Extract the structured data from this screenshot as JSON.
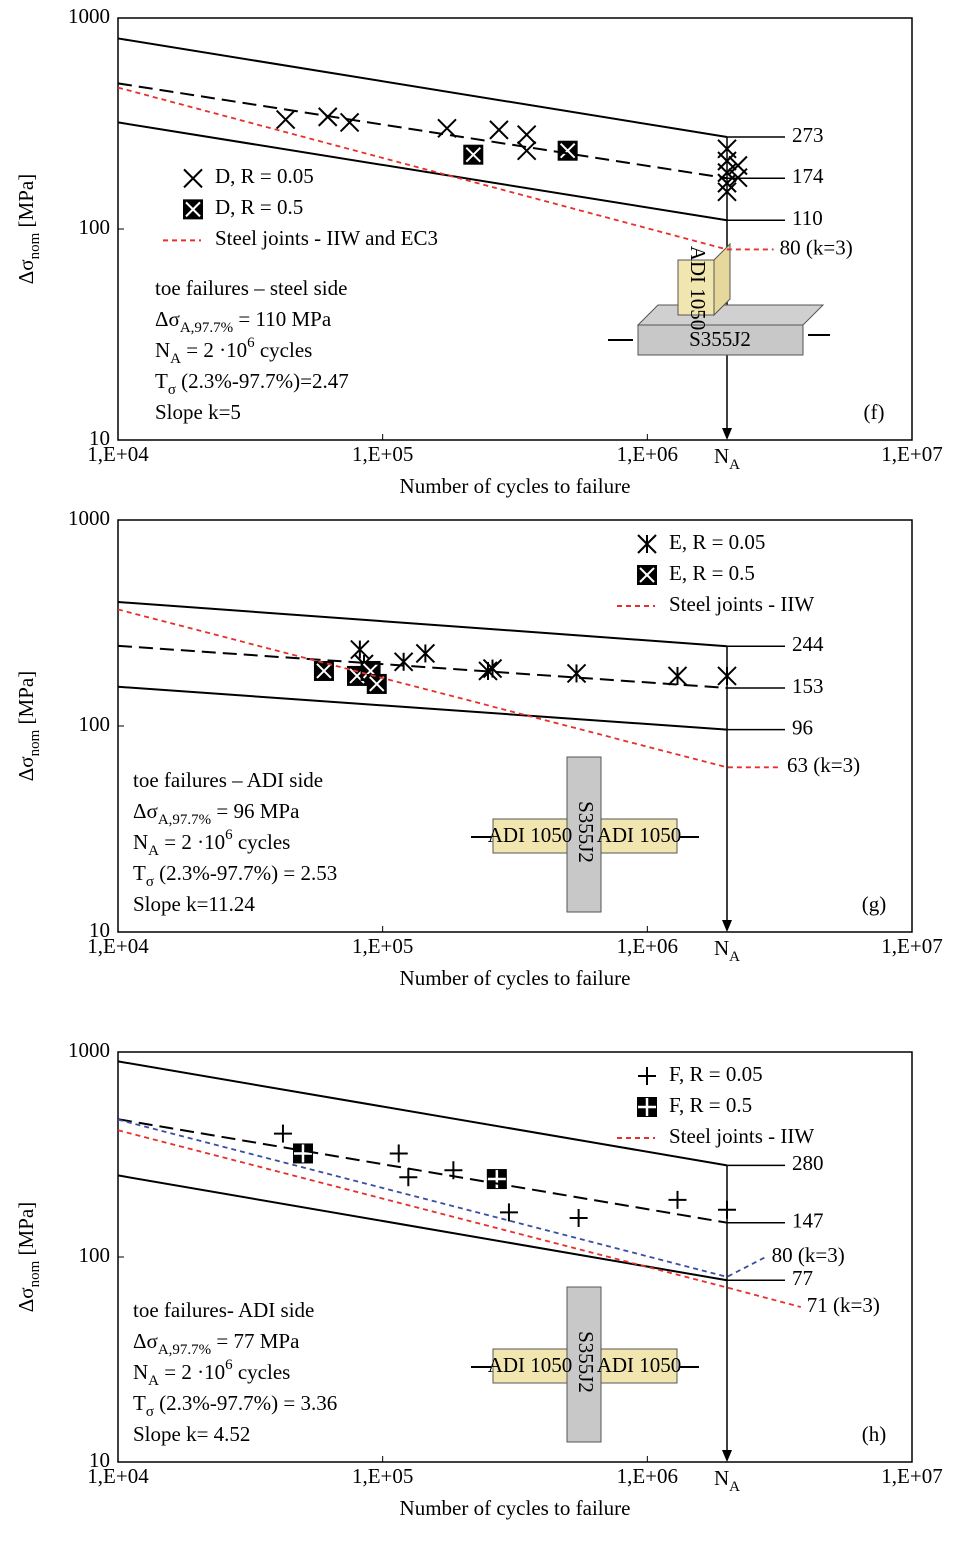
{
  "chart_data": [
    {
      "type": "scatter",
      "log_x": true,
      "log_y": true,
      "legend": "center-left",
      "panel_label": "(f)",
      "xlabel": "Number of cycles to failure",
      "ylabel": [
        "Δσ",
        {
          "sub": "nom"
        },
        " [MPa]"
      ],
      "xlim": [
        10000,
        10000000
      ],
      "ylim": [
        10,
        1000
      ],
      "xticks": [
        {
          "value": 10000,
          "label": "1,E+04"
        },
        {
          "value": 100000,
          "label": "1,E+05"
        },
        {
          "value": 1000000,
          "label": "1,E+06"
        },
        {
          "value": 10000000,
          "label": "1,E+07"
        }
      ],
      "yticks": [
        10,
        100,
        1000
      ],
      "x_marker": {
        "value": 2000000,
        "label": [
          "N",
          {
            "sub": "A"
          }
        ]
      },
      "series": [
        {
          "name": "D, R = 0.05",
          "marker": "x",
          "color": "#000000",
          "x": [
            43000,
            62000,
            75000,
            175000,
            275000,
            350000,
            350000,
            2000000,
            2000000,
            2000000,
            2000000,
            2000000,
            2200000,
            2200000
          ],
          "values": [
            330,
            340,
            320,
            300,
            295,
            280,
            235,
            240,
            210,
            185,
            165,
            150,
            200,
            175
          ]
        },
        {
          "name": "D, R = 0.5",
          "marker": "xbox",
          "color": "#000000",
          "x": [
            220000,
            500000
          ],
          "values": [
            225,
            235
          ]
        },
        {
          "style": "solid",
          "color": "#000000",
          "x": [
            10000,
            2000000
          ],
          "values": [
            800,
            273
          ],
          "label": 273
        },
        {
          "style": "dashed",
          "color": "#000000",
          "x": [
            10000,
            2000000
          ],
          "values": [
            490,
            174
          ],
          "label": 174
        },
        {
          "style": "solid",
          "color": "#000000",
          "x": [
            10000,
            2000000
          ],
          "values": [
            320,
            110
          ],
          "label": 110
        },
        {
          "name": "Steel joints - IIW and EC3",
          "style": "dashed",
          "color": "#e8302a",
          "x": [
            10000,
            2000000,
            3000000
          ],
          "values": [
            468,
            80,
            80
          ],
          "label": {
            "value": 80,
            "label": "80 (k=3)"
          }
        }
      ],
      "notes": [
        [
          "toe failures – steel side"
        ],
        [
          "Δσ",
          {
            "sub": "A,97.7%"
          },
          " =  110 MPa"
        ],
        [
          "N",
          {
            "sub": "A"
          },
          " = 2 ·10",
          {
            "sup": "6"
          },
          " cycles"
        ],
        [
          "T",
          {
            "sub": "σ"
          },
          " (2.3%-97.7%)=2.47"
        ],
        [
          "Slope k=5"
        ]
      ],
      "inset_labels": [
        "ADI 1050",
        "S355J2"
      ]
    },
    {
      "type": "scatter",
      "log_x": true,
      "log_y": true,
      "legend": "upper-right",
      "panel_label": "(g)",
      "xlabel": "Number of cycles to failure",
      "ylabel": [
        "Δσ",
        {
          "sub": "nom"
        },
        " [MPa]"
      ],
      "xlim": [
        10000,
        10000000
      ],
      "ylim": [
        10,
        1000
      ],
      "xticks": [
        {
          "value": 10000,
          "label": "1,E+04"
        },
        {
          "value": 100000,
          "label": "1,E+05"
        },
        {
          "value": 1000000,
          "label": "1,E+06"
        },
        {
          "value": 10000000,
          "label": "1,E+07"
        }
      ],
      "yticks": [
        10,
        100,
        1000
      ],
      "x_marker": {
        "value": 2000000,
        "label": [
          "N",
          {
            "sub": "A"
          }
        ]
      },
      "series": [
        {
          "name": "E, R = 0.05",
          "marker": "asterisk",
          "color": "#000000",
          "x": [
            82000,
            85000,
            120000,
            145000,
            250000,
            260000,
            540000,
            1300000,
            2000000
          ],
          "values": [
            235,
            200,
            205,
            225,
            185,
            190,
            180,
            175,
            175
          ]
        },
        {
          "name": "E, R = 0.5",
          "marker": "xbox",
          "color": "#000000",
          "x": [
            60000,
            80000,
            90000,
            95000
          ],
          "values": [
            185,
            175,
            185,
            160
          ]
        },
        {
          "style": "solid",
          "color": "#000000",
          "x": [
            10000,
            2000000
          ],
          "values": [
            400,
            244
          ],
          "label": 244
        },
        {
          "style": "dashed",
          "color": "#000000",
          "x": [
            10000,
            2000000
          ],
          "values": [
            245,
            153
          ],
          "label": 153
        },
        {
          "style": "solid",
          "color": "#000000",
          "x": [
            10000,
            2000000
          ],
          "values": [
            155,
            96
          ],
          "label": 96
        },
        {
          "name": "Steel joints - IIW",
          "style": "dashed",
          "color": "#e8302a",
          "x": [
            10000,
            2000000,
            3200000
          ],
          "values": [
            368,
            63,
            63
          ],
          "label": {
            "value": 63,
            "label": "63 (k=3)"
          }
        }
      ],
      "notes": [
        [
          "toe failures – ADI side"
        ],
        [
          "Δσ",
          {
            "sub": "A,97.7%"
          },
          " =  96 MPa"
        ],
        [
          "N",
          {
            "sub": "A"
          },
          " = 2 ·10",
          {
            "sup": "6"
          },
          " cycles"
        ],
        [
          "T",
          {
            "sub": "σ"
          },
          " (2.3%-97.7%) = 2.53"
        ],
        [
          "Slope k=11.24"
        ]
      ],
      "inset_labels": [
        "ADI 1050",
        "S355J2",
        "ADI 1050"
      ]
    },
    {
      "type": "scatter",
      "log_x": true,
      "log_y": true,
      "legend": "upper-right",
      "panel_label": "(h)",
      "xlabel": "Number of cycles to failure",
      "ylabel": [
        "Δσ",
        {
          "sub": "nom"
        },
        " [MPa]"
      ],
      "xlim": [
        10000,
        10000000
      ],
      "ylim": [
        10,
        1000
      ],
      "xticks": [
        {
          "value": 10000,
          "label": "1,E+04"
        },
        {
          "value": 100000,
          "label": "1,E+05"
        },
        {
          "value": 1000000,
          "label": "1,E+06"
        },
        {
          "value": 10000000,
          "label": "1,E+07"
        }
      ],
      "yticks": [
        10,
        100,
        1000
      ],
      "x_marker": {
        "value": 2000000,
        "label": [
          "N",
          {
            "sub": "A"
          }
        ]
      },
      "series": [
        {
          "name": "F, R = 0.05",
          "marker": "plus",
          "color": "#000000",
          "x": [
            42000,
            115000,
            125000,
            185000,
            300000,
            550000,
            1300000,
            2000000
          ],
          "values": [
            400,
            320,
            245,
            265,
            165,
            155,
            190,
            170
          ]
        },
        {
          "name": "F, R = 0.5",
          "marker": "plusbox",
          "color": "#000000",
          "x": [
            50000,
            270000
          ],
          "values": [
            320,
            240
          ]
        },
        {
          "style": "solid",
          "color": "#000000",
          "x": [
            10000,
            2000000
          ],
          "values": [
            900,
            280
          ],
          "label": 280
        },
        {
          "style": "dashed",
          "color": "#000000",
          "x": [
            10000,
            2000000
          ],
          "values": [
            470,
            147
          ],
          "label": 147
        },
        {
          "style": "solid",
          "color": "#000000",
          "x": [
            10000,
            2000000
          ],
          "values": [
            250,
            77
          ],
          "label": 77
        },
        {
          "style": "dashed",
          "color": "#3a4fa0",
          "x": [
            10000,
            2000000,
            2800000
          ],
          "values": [
            468,
            80,
            100
          ],
          "label": {
            "value": 80,
            "label": "80 (k=3)"
          }
        },
        {
          "name": "Steel joints - IIW",
          "style": "dashed",
          "color": "#e8302a",
          "x": [
            10000,
            2000000,
            3800000
          ],
          "values": [
            415,
            71,
            57
          ],
          "label": {
            "value": 71,
            "label": "71 (k=3)"
          }
        }
      ],
      "notes": [
        [
          "toe failures- ADI side"
        ],
        [
          "Δσ",
          {
            "sub": "A,97.7%"
          },
          " =  77 MPa"
        ],
        [
          "N",
          {
            "sub": "A"
          },
          " = 2 ·10",
          {
            "sup": "6"
          },
          " cycles"
        ],
        [
          "T",
          {
            "sub": "σ"
          },
          " (2.3%-97.7%) = 3.36"
        ],
        [
          "Slope k= 4.52"
        ]
      ],
      "inset_labels": [
        "ADI 1050",
        "S355J2",
        "ADI 1050"
      ]
    }
  ]
}
